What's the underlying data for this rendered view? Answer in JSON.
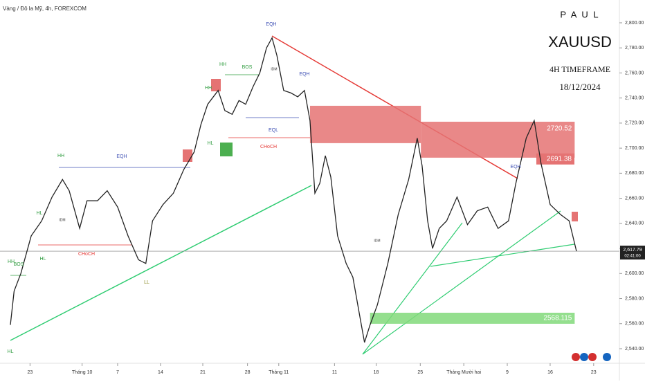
{
  "chart_data": {
    "type": "line",
    "title": "Vàng / Đô la Mỹ, 4h, FOREXCOM",
    "panel": {
      "author": "P A U L",
      "symbol": "XAUUSD",
      "timeframe": "4H TIMEFRAME",
      "date": "18/12/2024"
    },
    "x": [
      -3.2,
      -2.6,
      -1.5,
      0.2,
      1.9,
      3.6,
      5.3,
      6.4,
      8.1,
      9.3,
      11.0,
      12.6,
      14.3,
      16.0,
      17.7,
      18.9,
      20.0,
      21.7,
      23.4,
      25.1,
      26.8,
      27.9,
      29.0,
      30.7,
      31.8,
      33.0,
      34.1,
      35.2,
      36.4,
      37.5,
      38.6,
      39.5,
      40.3,
      41.4,
      42.6,
      43.7,
      44.8,
      45.7,
      46.5,
      47.3,
      48.2,
      49.1,
      50.2,
      51.6,
      52.7,
      53.9,
      54.6,
      55.5,
      56.7,
      58.4,
      60.1,
      61.8,
      63.2,
      64.0,
      64.9,
      65.7,
      66.8,
      68.0,
      69.7,
      71.4,
      73.0,
      74.7,
      76.4,
      78.1,
      79.3,
      81.0,
      82.3,
      83.4,
      84.9,
      86.6,
      88.0,
      89.2
    ],
    "series": [
      {
        "name": "XAUUSD",
        "color": "#222222",
        "values": [
          2559,
          2586,
          2600,
          2630,
          2642,
          2661,
          2675,
          2666,
          2636,
          2658,
          2658,
          2666,
          2653,
          2630,
          2611,
          2608,
          2642,
          2655,
          2664,
          2683,
          2697,
          2719,
          2735,
          2746,
          2730,
          2727,
          2738,
          2735,
          2749,
          2760,
          2780,
          2788,
          2774,
          2746,
          2744,
          2741,
          2746,
          2722,
          2664,
          2672,
          2694,
          2677,
          2630,
          2608,
          2597,
          2564,
          2545,
          2559,
          2575,
          2608,
          2647,
          2675,
          2708,
          2686,
          2642,
          2620,
          2636,
          2642,
          2661,
          2639,
          2650,
          2653,
          2636,
          2642,
          2672,
          2708,
          2722,
          2688,
          2655,
          2647,
          2642,
          2617.79
        ]
      }
    ],
    "xlim": [
      -4.9,
      96.2
    ],
    "xticks": [
      {
        "value": 0,
        "label": "23"
      },
      {
        "value": 8.5,
        "label": "Tháng 10"
      },
      {
        "value": 14.3,
        "label": "7"
      },
      {
        "value": 21.3,
        "label": "14"
      },
      {
        "value": 28.2,
        "label": "21"
      },
      {
        "value": 35.5,
        "label": "28"
      },
      {
        "value": 40.6,
        "label": "Tháng 11"
      },
      {
        "value": 49.7,
        "label": "11"
      },
      {
        "value": 56.5,
        "label": "18"
      },
      {
        "value": 63.7,
        "label": "25"
      },
      {
        "value": 70.8,
        "label": "Tháng Mười hai"
      },
      {
        "value": 77.9,
        "label": "9"
      },
      {
        "value": 84.9,
        "label": "16"
      },
      {
        "value": 92.0,
        "label": "23"
      }
    ],
    "ylim": [
      2528.4,
      2818.2
    ],
    "yticks": [
      {
        "value": 2540,
        "label": "2,540.00"
      },
      {
        "value": 2560,
        "label": "2,560.00"
      },
      {
        "value": 2580,
        "label": "2,580.00"
      },
      {
        "value": 2600,
        "label": "2,600.00"
      },
      {
        "value": 2620,
        "label": "2,620.00"
      },
      {
        "value": 2640,
        "label": "2,640.00"
      },
      {
        "value": 2660,
        "label": "2,660.00"
      },
      {
        "value": 2680,
        "label": "2,680.00"
      },
      {
        "value": 2700,
        "label": "2,700.00"
      },
      {
        "value": 2720,
        "label": "2,720.00"
      },
      {
        "value": 2740,
        "label": "2,740.00"
      },
      {
        "value": 2760,
        "label": "2,760.00"
      },
      {
        "value": 2780,
        "label": "2,780.00"
      },
      {
        "value": 2800,
        "label": "2,800.00"
      }
    ],
    "last_price": {
      "value": 2617.79,
      "label": "2,617.79",
      "countdown": "02:41:00"
    },
    "zones": [
      {
        "x": [
          45.7,
          63.8
        ],
        "y": [
          2704.0,
          2733.8
        ],
        "color": "#e57373"
      },
      {
        "x": [
          63.8,
          88.9
        ],
        "y": [
          2692.4,
          2721.1
        ],
        "color": "#e57373",
        "label": "2720.52"
      },
      {
        "x": [
          55.5,
          88.9
        ],
        "y": [
          2559.9,
          2568.7
        ],
        "color": "#81d97a",
        "label": "2568.115"
      }
    ],
    "levels": [
      {
        "value": 2691.38,
        "label": "2691.38",
        "color": "#e57373"
      }
    ],
    "annotations": [
      {
        "text": "EQH",
        "color": "#3f51b5"
      },
      {
        "text": "HH",
        "color": "#2e9b3e"
      },
      {
        "text": "BOS",
        "color": "#2e9b3e"
      },
      {
        "text": "EQH",
        "color": "#3f51b5"
      },
      {
        "text": "HH",
        "color": "#2e9b3e"
      },
      {
        "text": "EQL",
        "color": "#3f51b5"
      },
      {
        "text": "HL",
        "color": "#2e9b3e"
      },
      {
        "text": "CHoCH",
        "color": "#e53935"
      },
      {
        "text": "HH",
        "color": "#2e9b3e"
      },
      {
        "text": "EQH",
        "color": "#3f51b5"
      },
      {
        "text": "HL",
        "color": "#2e9b3e"
      },
      {
        "text": "CHoCH",
        "color": "#e53935"
      },
      {
        "text": "HH",
        "color": "#2e9b3e"
      },
      {
        "text": "BOS",
        "color": "#2e9b3e"
      },
      {
        "text": "HL",
        "color": "#2e9b3e"
      },
      {
        "text": "LL",
        "color": "#8d8d2a"
      },
      {
        "text": "HL",
        "color": "#2e9b3e"
      },
      {
        "text": "EQH",
        "color": "#3f51b5"
      },
      {
        "text": "IDM",
        "color": "#333333"
      },
      {
        "text": "IDM",
        "color": "#333333"
      },
      {
        "text": "IDM",
        "color": "#333333"
      }
    ]
  }
}
